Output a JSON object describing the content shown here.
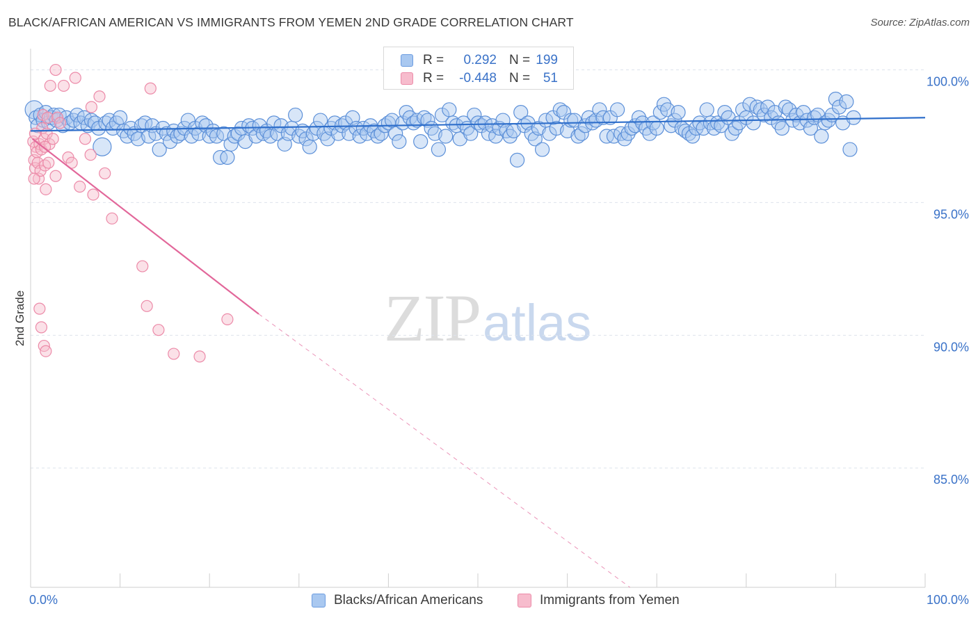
{
  "title": "BLACK/AFRICAN AMERICAN VS IMMIGRANTS FROM YEMEN 2ND GRADE CORRELATION CHART",
  "source": "Source: ZipAtlas.com",
  "watermark": {
    "part_a": "ZIP",
    "part_b": "atlas"
  },
  "legend": {
    "rows": [
      {
        "r_label": "R =",
        "r_value": "0.292",
        "n_label": "N =",
        "n_value": "199",
        "fill": "#a9c8f0",
        "stroke": "#6a9be0"
      },
      {
        "r_label": "R =",
        "r_value": "-0.448",
        "n_label": "N =",
        "n_value": "51",
        "fill": "#f7bccd",
        "stroke": "#ec8aa8"
      }
    ]
  },
  "bottom_legend": {
    "items": [
      {
        "label": "Blacks/African Americans",
        "fill": "#a9c8f0",
        "stroke": "#6a9be0"
      },
      {
        "label": "Immigrants from Yemen",
        "fill": "#f7bccd",
        "stroke": "#ec8aa8"
      }
    ]
  },
  "colors": {
    "blue_fill": "#a9c8f0",
    "blue_stroke": "#5b8fd8",
    "blue_line": "#2f6fcb",
    "pink_fill": "#f7bccd",
    "pink_stroke": "#ec8aa8",
    "pink_line": "#e2679a",
    "grid": "#dde3ec",
    "axis_text": "#3a72c8"
  },
  "chart_data": {
    "type": "scatter",
    "title": "BLACK/AFRICAN AMERICAN VS IMMIGRANTS FROM YEMEN 2ND GRADE CORRELATION CHART",
    "xlabel": "",
    "ylabel": "2nd Grade",
    "xlim": [
      0,
      100
    ],
    "ylim": [
      80.5,
      100.8
    ],
    "x_tick_labels": [
      "0.0%",
      "100.0%"
    ],
    "y_ticks": [
      85,
      90,
      95,
      100
    ],
    "y_tick_labels": [
      "85.0%",
      "90.0%",
      "95.0%",
      "100.0%"
    ],
    "grid": true,
    "legend_position": "top-center",
    "series": [
      {
        "name": "Blacks/African Americans",
        "r": 0.292,
        "n": 199,
        "trend": {
          "x": [
            0,
            100
          ],
          "y": [
            97.7,
            98.2
          ],
          "dashed_extension": false
        },
        "points": [
          [
            0.4,
            98.5
          ],
          [
            0.6,
            98.2
          ],
          [
            0.8,
            97.9
          ],
          [
            1.1,
            98.3
          ],
          [
            1.4,
            98.1
          ],
          [
            1.7,
            98.4
          ],
          [
            2.0,
            98.0
          ],
          [
            2.3,
            98.2
          ],
          [
            2.6,
            98.3
          ],
          [
            2.9,
            98.1
          ],
          [
            3.2,
            98.3
          ],
          [
            3.6,
            97.9
          ],
          [
            4.0,
            98.2
          ],
          [
            4.4,
            98.0
          ],
          [
            4.8,
            98.1
          ],
          [
            5.2,
            98.3
          ],
          [
            5.6,
            98.0
          ],
          [
            6.0,
            98.2
          ],
          [
            6.4,
            97.9
          ],
          [
            6.8,
            98.1
          ],
          [
            7.2,
            98.0
          ],
          [
            7.6,
            97.8
          ],
          [
            8.0,
            97.1
          ],
          [
            8.4,
            98.0
          ],
          [
            8.8,
            98.1
          ],
          [
            9.2,
            97.8
          ],
          [
            9.6,
            98.0
          ],
          [
            10.0,
            98.2
          ],
          [
            10.4,
            97.7
          ],
          [
            10.8,
            97.5
          ],
          [
            11.2,
            97.8
          ],
          [
            11.6,
            97.6
          ],
          [
            12.0,
            97.4
          ],
          [
            12.4,
            97.9
          ],
          [
            12.8,
            98.0
          ],
          [
            13.2,
            97.5
          ],
          [
            13.6,
            97.9
          ],
          [
            14.0,
            97.6
          ],
          [
            14.4,
            97.0
          ],
          [
            14.8,
            97.8
          ],
          [
            15.2,
            97.6
          ],
          [
            15.6,
            97.3
          ],
          [
            16.0,
            97.7
          ],
          [
            16.4,
            97.5
          ],
          [
            16.8,
            97.6
          ],
          [
            17.2,
            97.8
          ],
          [
            17.6,
            98.1
          ],
          [
            18.0,
            97.5
          ],
          [
            18.4,
            97.8
          ],
          [
            18.8,
            97.6
          ],
          [
            19.2,
            98.0
          ],
          [
            19.6,
            97.9
          ],
          [
            20.0,
            97.5
          ],
          [
            20.4,
            97.7
          ],
          [
            20.8,
            97.5
          ],
          [
            21.2,
            96.7
          ],
          [
            21.6,
            97.6
          ],
          [
            22.0,
            96.7
          ],
          [
            22.4,
            97.2
          ],
          [
            22.8,
            97.5
          ],
          [
            23.2,
            97.6
          ],
          [
            23.6,
            97.8
          ],
          [
            24.0,
            97.3
          ],
          [
            24.4,
            97.9
          ],
          [
            24.8,
            97.8
          ],
          [
            25.2,
            97.5
          ],
          [
            25.6,
            97.9
          ],
          [
            26.0,
            97.6
          ],
          [
            26.4,
            97.7
          ],
          [
            26.8,
            97.5
          ],
          [
            27.2,
            98.0
          ],
          [
            27.6,
            97.6
          ],
          [
            28.0,
            97.9
          ],
          [
            28.4,
            97.2
          ],
          [
            28.8,
            97.6
          ],
          [
            29.2,
            97.8
          ],
          [
            29.6,
            98.3
          ],
          [
            30.0,
            97.5
          ],
          [
            30.4,
            97.7
          ],
          [
            30.8,
            97.4
          ],
          [
            31.2,
            97.1
          ],
          [
            31.6,
            97.6
          ],
          [
            32.0,
            97.8
          ],
          [
            32.4,
            98.1
          ],
          [
            32.8,
            97.6
          ],
          [
            33.2,
            97.4
          ],
          [
            33.6,
            97.8
          ],
          [
            34.0,
            98.0
          ],
          [
            34.4,
            97.6
          ],
          [
            34.8,
            97.9
          ],
          [
            35.2,
            98.0
          ],
          [
            35.6,
            97.6
          ],
          [
            36.0,
            98.2
          ],
          [
            36.4,
            97.8
          ],
          [
            36.8,
            97.5
          ],
          [
            37.2,
            97.8
          ],
          [
            37.6,
            97.6
          ],
          [
            38.0,
            97.9
          ],
          [
            38.4,
            97.7
          ],
          [
            38.8,
            97.5
          ],
          [
            39.2,
            97.6
          ],
          [
            39.6,
            97.9
          ],
          [
            40.0,
            98.0
          ],
          [
            40.4,
            98.1
          ],
          [
            40.8,
            97.6
          ],
          [
            41.2,
            97.3
          ],
          [
            41.6,
            98.0
          ],
          [
            42.0,
            98.4
          ],
          [
            42.4,
            98.2
          ],
          [
            42.8,
            98.0
          ],
          [
            43.2,
            98.1
          ],
          [
            43.6,
            97.3
          ],
          [
            44.0,
            98.2
          ],
          [
            44.4,
            98.1
          ],
          [
            44.8,
            97.8
          ],
          [
            45.2,
            97.6
          ],
          [
            45.6,
            97.0
          ],
          [
            46.0,
            98.3
          ],
          [
            46.4,
            97.5
          ],
          [
            46.8,
            98.5
          ],
          [
            47.2,
            98.0
          ],
          [
            47.6,
            97.9
          ],
          [
            48.0,
            97.4
          ],
          [
            48.4,
            98.0
          ],
          [
            48.8,
            97.8
          ],
          [
            49.2,
            97.6
          ],
          [
            49.6,
            98.3
          ],
          [
            50.0,
            98.0
          ],
          [
            50.4,
            97.9
          ],
          [
            50.8,
            98.0
          ],
          [
            51.2,
            97.6
          ],
          [
            51.6,
            97.9
          ],
          [
            52.0,
            97.5
          ],
          [
            52.4,
            97.8
          ],
          [
            52.8,
            98.1
          ],
          [
            53.2,
            97.7
          ],
          [
            53.6,
            97.5
          ],
          [
            54.0,
            97.7
          ],
          [
            54.4,
            96.6
          ],
          [
            54.8,
            98.4
          ],
          [
            55.2,
            97.9
          ],
          [
            55.6,
            98.0
          ],
          [
            56.0,
            97.6
          ],
          [
            56.4,
            97.4
          ],
          [
            56.8,
            97.8
          ],
          [
            57.2,
            97.0
          ],
          [
            57.6,
            98.1
          ],
          [
            58.0,
            97.6
          ],
          [
            58.4,
            98.2
          ],
          [
            58.8,
            97.8
          ],
          [
            59.2,
            98.5
          ],
          [
            59.6,
            98.4
          ],
          [
            60.0,
            97.7
          ],
          [
            60.4,
            98.1
          ],
          [
            60.8,
            98.1
          ],
          [
            61.2,
            97.5
          ],
          [
            61.6,
            97.6
          ],
          [
            62.0,
            97.9
          ],
          [
            62.4,
            98.2
          ],
          [
            62.8,
            98.0
          ],
          [
            63.2,
            98.1
          ],
          [
            63.6,
            98.5
          ],
          [
            64.0,
            98.2
          ],
          [
            64.4,
            97.5
          ],
          [
            64.8,
            98.2
          ],
          [
            65.2,
            97.5
          ],
          [
            65.6,
            98.5
          ],
          [
            66.0,
            97.6
          ],
          [
            66.4,
            97.4
          ],
          [
            66.8,
            97.6
          ],
          [
            67.2,
            97.8
          ],
          [
            67.6,
            97.9
          ],
          [
            68.0,
            98.2
          ],
          [
            68.4,
            98.0
          ],
          [
            68.8,
            97.8
          ],
          [
            69.2,
            97.6
          ],
          [
            69.6,
            98.0
          ],
          [
            70.0,
            97.8
          ],
          [
            70.4,
            98.4
          ],
          [
            70.8,
            98.7
          ],
          [
            71.2,
            98.5
          ],
          [
            71.6,
            97.9
          ],
          [
            72.0,
            98.1
          ],
          [
            72.4,
            98.4
          ],
          [
            72.8,
            97.8
          ],
          [
            73.2,
            97.7
          ],
          [
            73.6,
            97.6
          ],
          [
            74.0,
            97.5
          ],
          [
            74.4,
            97.8
          ],
          [
            74.8,
            98.0
          ],
          [
            75.2,
            97.8
          ],
          [
            75.6,
            98.5
          ],
          [
            76.0,
            98.0
          ],
          [
            76.4,
            97.8
          ],
          [
            76.8,
            98.0
          ],
          [
            77.2,
            97.9
          ],
          [
            77.6,
            98.4
          ],
          [
            78.0,
            98.2
          ],
          [
            78.4,
            97.6
          ],
          [
            78.8,
            97.8
          ],
          [
            79.2,
            98.0
          ],
          [
            79.6,
            98.5
          ],
          [
            80.0,
            98.2
          ],
          [
            80.4,
            98.7
          ],
          [
            80.8,
            98.0
          ],
          [
            81.2,
            98.6
          ],
          [
            81.6,
            98.5
          ],
          [
            82.0,
            98.3
          ],
          [
            82.4,
            98.6
          ],
          [
            82.8,
            98.2
          ],
          [
            83.2,
            98.4
          ],
          [
            83.6,
            98.0
          ],
          [
            84.0,
            97.8
          ],
          [
            84.4,
            98.6
          ],
          [
            84.8,
            98.5
          ],
          [
            85.2,
            98.1
          ],
          [
            85.6,
            98.3
          ],
          [
            86.0,
            98.0
          ],
          [
            86.4,
            98.4
          ],
          [
            86.8,
            98.1
          ],
          [
            87.2,
            97.8
          ],
          [
            87.6,
            98.2
          ],
          [
            88.0,
            98.3
          ],
          [
            88.4,
            97.5
          ],
          [
            88.8,
            98.0
          ],
          [
            89.2,
            98.1
          ],
          [
            89.6,
            98.3
          ],
          [
            90.0,
            98.9
          ],
          [
            90.4,
            98.6
          ],
          [
            90.8,
            98.0
          ],
          [
            91.2,
            98.8
          ],
          [
            91.6,
            97.0
          ],
          [
            92.0,
            98.2
          ]
        ]
      },
      {
        "name": "Immigrants from Yemen",
        "r": -0.448,
        "n": 51,
        "trend": {
          "x": [
            0.2,
            25.5
          ],
          "y": [
            97.4,
            90.8
          ],
          "dashed_to": [
            67,
            80.5
          ]
        },
        "points": [
          [
            0.3,
            97.3
          ],
          [
            0.4,
            96.6
          ],
          [
            0.5,
            96.3
          ],
          [
            0.6,
            97.1
          ],
          [
            0.7,
            96.9
          ],
          [
            0.8,
            96.5
          ],
          [
            0.9,
            95.9
          ],
          [
            1.0,
            97.2
          ],
          [
            1.1,
            96.2
          ],
          [
            1.2,
            97.0
          ],
          [
            1.3,
            97.8
          ],
          [
            1.4,
            98.3
          ],
          [
            1.5,
            97.4
          ],
          [
            1.6,
            96.4
          ],
          [
            1.7,
            95.5
          ],
          [
            1.8,
            97.6
          ],
          [
            1.9,
            98.2
          ],
          [
            2.0,
            96.5
          ],
          [
            2.1,
            97.2
          ],
          [
            2.2,
            99.4
          ],
          [
            2.5,
            97.4
          ],
          [
            2.8,
            100.0
          ],
          [
            3.0,
            98.2
          ],
          [
            3.3,
            98.0
          ],
          [
            3.7,
            99.4
          ],
          [
            4.2,
            96.7
          ],
          [
            4.6,
            96.5
          ],
          [
            5.0,
            99.7
          ],
          [
            5.5,
            95.6
          ],
          [
            6.1,
            97.4
          ],
          [
            6.8,
            98.6
          ],
          [
            7.0,
            95.3
          ],
          [
            7.7,
            99.0
          ],
          [
            8.3,
            96.1
          ],
          [
            9.1,
            94.4
          ],
          [
            12.5,
            92.6
          ],
          [
            13.0,
            91.1
          ],
          [
            13.4,
            99.3
          ],
          [
            14.3,
            90.2
          ],
          [
            16.0,
            89.3
          ],
          [
            18.9,
            89.2
          ],
          [
            22.0,
            90.6
          ],
          [
            1.0,
            91.0
          ],
          [
            1.2,
            90.3
          ],
          [
            1.5,
            89.6
          ],
          [
            1.7,
            89.4
          ],
          [
            0.4,
            95.9
          ],
          [
            2.8,
            96.0
          ],
          [
            6.7,
            96.8
          ],
          [
            0.5,
            97.6
          ],
          [
            1.6,
            97.1
          ]
        ]
      }
    ]
  }
}
